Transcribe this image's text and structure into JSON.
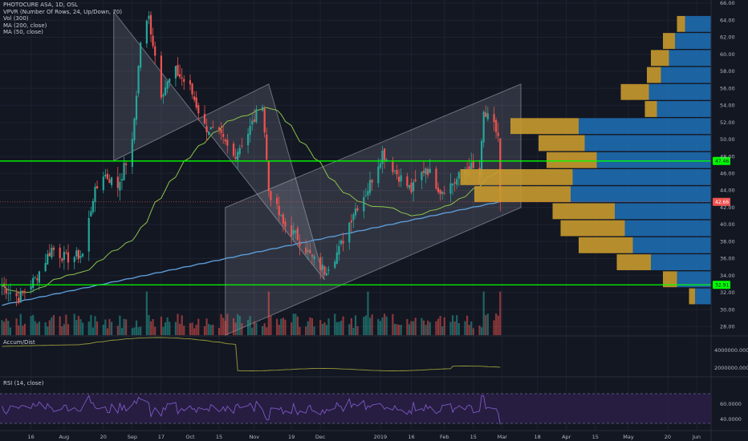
{
  "legend": {
    "symbol": "PHOTOCURE ASA, 1D, OSL",
    "vpvr": "VPVR (Number Of Rows, 24, Up/Down, 70)",
    "vol": "Vol (300)",
    "ma200": "MA (200, close)",
    "ma50": "MA (50, close)"
  },
  "panes": {
    "accum_label": "Accum/Dist",
    "rsi_label": "RSI (14, close)"
  },
  "colors": {
    "background": "#131722",
    "up": "#26a69a",
    "down": "#ef5350",
    "ma200": "#5b9bd5",
    "ma50": "#8bc34a",
    "support": "#00ff00",
    "vpvr_up": "#1e6bb0",
    "vpvr_down": "#c99a2e",
    "rsi_band": "#2a1f47",
    "accum": "#9b9b3a",
    "rsi_line": "#7e57c2"
  },
  "chart_data": {
    "type": "candlestick",
    "ylim": [
      27,
      66
    ],
    "price_ticks": [
      "66.00",
      "64.00",
      "62.00",
      "60.00",
      "58.00",
      "56.00",
      "54.00",
      "52.00",
      "50.00",
      "48.00",
      "46.00",
      "44.00",
      "42.00",
      "40.00",
      "38.00",
      "36.00",
      "34.00",
      "32.00",
      "30.00",
      "28.00"
    ],
    "x_ticks": [
      {
        "label": "16",
        "date": "2018-07-16"
      },
      {
        "label": "Aug",
        "date": "2018-08-01"
      },
      {
        "label": "20",
        "date": "2018-08-20"
      },
      {
        "label": "Sep",
        "date": "2018-09-03"
      },
      {
        "label": "17",
        "date": "2018-09-17"
      },
      {
        "label": "Oct",
        "date": "2018-10-01"
      },
      {
        "label": "15",
        "date": "2018-10-15"
      },
      {
        "label": "Nov",
        "date": "2018-11-01"
      },
      {
        "label": "19",
        "date": "2018-11-19"
      },
      {
        "label": "Dec",
        "date": "2018-12-03"
      },
      {
        "label": "2019",
        "date": "2019-01-01"
      },
      {
        "label": "16",
        "date": "2019-01-16"
      },
      {
        "label": "Feb",
        "date": "2019-02-01"
      },
      {
        "label": "15",
        "date": "2019-02-15"
      },
      {
        "label": "Mar",
        "date": "2019-03-01"
      },
      {
        "label": "18",
        "date": "2019-03-18"
      },
      {
        "label": "Apr",
        "date": "2019-04-01"
      },
      {
        "label": "15",
        "date": "2019-04-15"
      },
      {
        "label": "May",
        "date": "2019-05-01"
      },
      {
        "label": "20",
        "date": "2019-05-20"
      },
      {
        "label": "Jun",
        "date": "2019-06-03"
      }
    ],
    "last_price_label": "42.66",
    "support_labels": [
      "47.46",
      "32.91"
    ],
    "support_levels": [
      47.46,
      32.91
    ],
    "close_anchors": [
      [
        "2018-07-02",
        32.8
      ],
      [
        "2018-07-10",
        31.4
      ],
      [
        "2018-07-18",
        33.6
      ],
      [
        "2018-07-26",
        37.2
      ],
      [
        "2018-08-02",
        36.0
      ],
      [
        "2018-08-10",
        36.5
      ],
      [
        "2018-08-15",
        43.2
      ],
      [
        "2018-08-20",
        46.0
      ],
      [
        "2018-08-27",
        44.5
      ],
      [
        "2018-09-03",
        49.5
      ],
      [
        "2018-09-07",
        61.5
      ],
      [
        "2018-09-11",
        64.3
      ],
      [
        "2018-09-17",
        55.5
      ],
      [
        "2018-09-24",
        58.0
      ],
      [
        "2018-10-01",
        56.0
      ],
      [
        "2018-10-08",
        51.5
      ],
      [
        "2018-10-15",
        50.5
      ],
      [
        "2018-10-22",
        48.0
      ],
      [
        "2018-10-29",
        50.8
      ],
      [
        "2018-11-05",
        54.5
      ],
      [
        "2018-11-08",
        44.0
      ],
      [
        "2018-11-15",
        40.0
      ],
      [
        "2018-11-22",
        38.5
      ],
      [
        "2018-11-29",
        36.0
      ],
      [
        "2018-12-05",
        34.6
      ],
      [
        "2018-12-12",
        37.0
      ],
      [
        "2018-12-19",
        41.5
      ],
      [
        "2018-12-26",
        44.2
      ],
      [
        "2019-01-02",
        48.5
      ],
      [
        "2019-01-09",
        46.0
      ],
      [
        "2019-01-16",
        44.0
      ],
      [
        "2019-01-23",
        46.8
      ],
      [
        "2019-01-30",
        44.0
      ],
      [
        "2019-02-06",
        45.0
      ],
      [
        "2019-02-13",
        47.0
      ],
      [
        "2019-02-18",
        45.5
      ],
      [
        "2019-02-20",
        53.0
      ],
      [
        "2019-02-25",
        51.5
      ],
      [
        "2019-02-27",
        50.4
      ],
      [
        "2019-02-28",
        42.7
      ]
    ],
    "vpvr_rows": [
      {
        "price": 63.5,
        "up": 0.13,
        "down": 0.04
      },
      {
        "price": 61.5,
        "up": 0.18,
        "down": 0.06
      },
      {
        "price": 59.5,
        "up": 0.21,
        "down": 0.09
      },
      {
        "price": 57.5,
        "up": 0.25,
        "down": 0.07
      },
      {
        "price": 55.5,
        "up": 0.31,
        "down": 0.14
      },
      {
        "price": 53.5,
        "up": 0.27,
        "down": 0.06
      },
      {
        "price": 51.5,
        "up": 0.66,
        "down": 0.34
      },
      {
        "price": 49.5,
        "up": 0.63,
        "down": 0.23
      },
      {
        "price": 47.5,
        "up": 0.57,
        "down": 0.25
      },
      {
        "price": 45.5,
        "up": 0.69,
        "down": 0.56
      },
      {
        "price": 43.5,
        "up": 0.7,
        "down": 0.48
      },
      {
        "price": 41.5,
        "up": 0.48,
        "down": 0.31
      },
      {
        "price": 39.5,
        "up": 0.43,
        "down": 0.32
      },
      {
        "price": 37.5,
        "up": 0.39,
        "down": 0.27
      },
      {
        "price": 35.5,
        "up": 0.3,
        "down": 0.17
      },
      {
        "price": 33.5,
        "up": 0.17,
        "down": 0.07
      },
      {
        "price": 31.5,
        "up": 0.08,
        "down": 0.03
      }
    ],
    "channels": [
      {
        "name": "",
        "points": [
          [
            "2018-08-25",
            47.5
          ],
          [
            "2018-11-08",
            56.5
          ],
          [
            "2018-12-05",
            33.5
          ],
          [
            "2018-08-25",
            65.0
          ]
        ]
      },
      {
        "name": "",
        "points": [
          [
            "2018-10-18",
            42.0
          ],
          [
            "2019-03-10",
            56.5
          ],
          [
            "2019-03-10",
            42.0
          ],
          [
            "2018-10-18",
            27.0
          ]
        ]
      }
    ],
    "accum_ticks": [
      "4000000.0000",
      "2000000.0000"
    ],
    "rsi_ticks": [
      "60.0000",
      "40.0000"
    ]
  }
}
